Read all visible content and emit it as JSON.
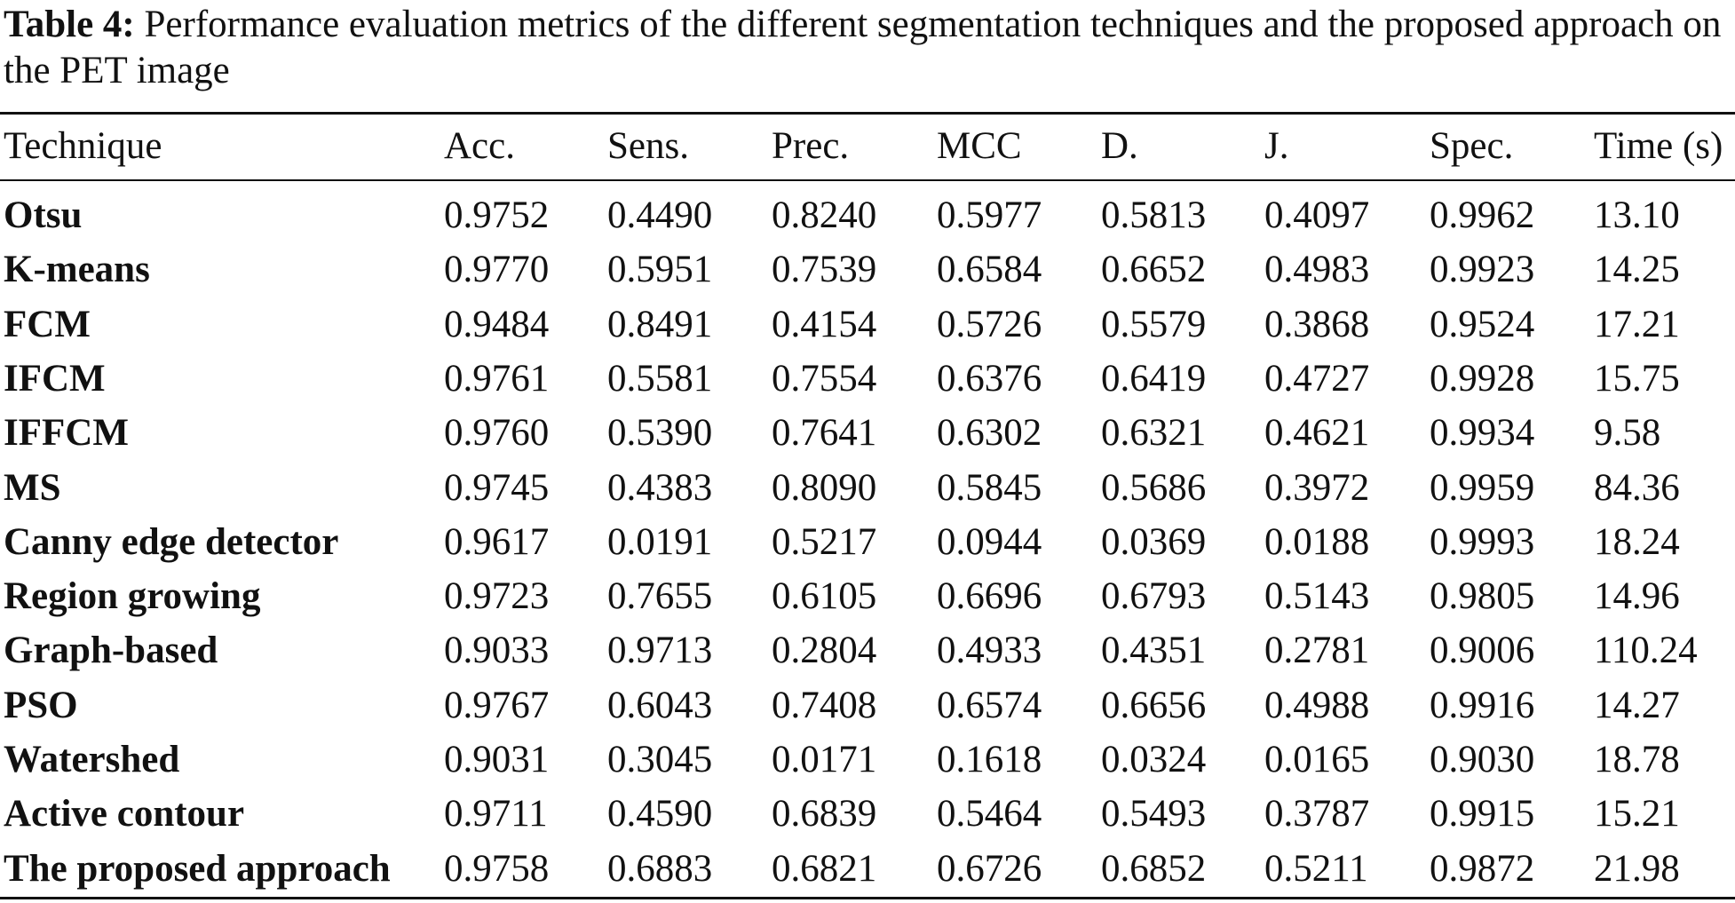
{
  "caption": {
    "label": "Table 4:",
    "text": " Performance evaluation metrics of the different segmentation techniques and the proposed approach on the PET image"
  },
  "table": {
    "headers": [
      "Technique",
      "Acc.",
      "Sens.",
      "Prec.",
      "MCC",
      "D.",
      "J.",
      "Spec.",
      "Time (s)"
    ],
    "rows": [
      {
        "technique": "Otsu",
        "values": [
          "0.9752",
          "0.4490",
          "0.8240",
          "0.5977",
          "0.5813",
          "0.4097",
          "0.9962",
          "13.10"
        ]
      },
      {
        "technique": "K-means",
        "values": [
          "0.9770",
          "0.5951",
          "0.7539",
          "0.6584",
          "0.6652",
          "0.4983",
          "0.9923",
          "14.25"
        ]
      },
      {
        "technique": "FCM",
        "values": [
          "0.9484",
          "0.8491",
          "0.4154",
          "0.5726",
          "0.5579",
          "0.3868",
          "0.9524",
          "17.21"
        ]
      },
      {
        "technique": "IFCM",
        "values": [
          "0.9761",
          "0.5581",
          "0.7554",
          "0.6376",
          "0.6419",
          "0.4727",
          "0.9928",
          "15.75"
        ]
      },
      {
        "technique": "IFFCM",
        "values": [
          "0.9760",
          "0.5390",
          "0.7641",
          "0.6302",
          "0.6321",
          "0.4621",
          "0.9934",
          "9.58"
        ]
      },
      {
        "technique": "MS",
        "values": [
          "0.9745",
          "0.4383",
          "0.8090",
          "0.5845",
          "0.5686",
          "0.3972",
          "0.9959",
          "84.36"
        ]
      },
      {
        "technique": "Canny edge detector",
        "values": [
          "0.9617",
          "0.0191",
          "0.5217",
          "0.0944",
          "0.0369",
          "0.0188",
          "0.9993",
          "18.24"
        ]
      },
      {
        "technique": "Region growing",
        "values": [
          "0.9723",
          "0.7655",
          "0.6105",
          "0.6696",
          "0.6793",
          "0.5143",
          "0.9805",
          "14.96"
        ]
      },
      {
        "technique": "Graph-based",
        "values": [
          "0.9033",
          "0.9713",
          "0.2804",
          "0.4933",
          "0.4351",
          "0.2781",
          "0.9006",
          "110.24"
        ]
      },
      {
        "technique": "PSO",
        "values": [
          "0.9767",
          "0.6043",
          "0.7408",
          "0.6574",
          "0.6656",
          "0.4988",
          "0.9916",
          "14.27"
        ]
      },
      {
        "technique": "Watershed",
        "values": [
          "0.9031",
          "0.3045",
          "0.0171",
          "0.1618",
          "0.0324",
          "0.0165",
          "0.9030",
          "18.78"
        ]
      },
      {
        "technique": "Active contour",
        "values": [
          "0.9711",
          "0.4590",
          "0.6839",
          "0.5464",
          "0.5493",
          "0.3787",
          "0.9915",
          "15.21"
        ]
      },
      {
        "technique": "The proposed approach",
        "values": [
          "0.9758",
          "0.6883",
          "0.6821",
          "0.6726",
          "0.6852",
          "0.5211",
          "0.9872",
          "21.98"
        ]
      }
    ]
  }
}
